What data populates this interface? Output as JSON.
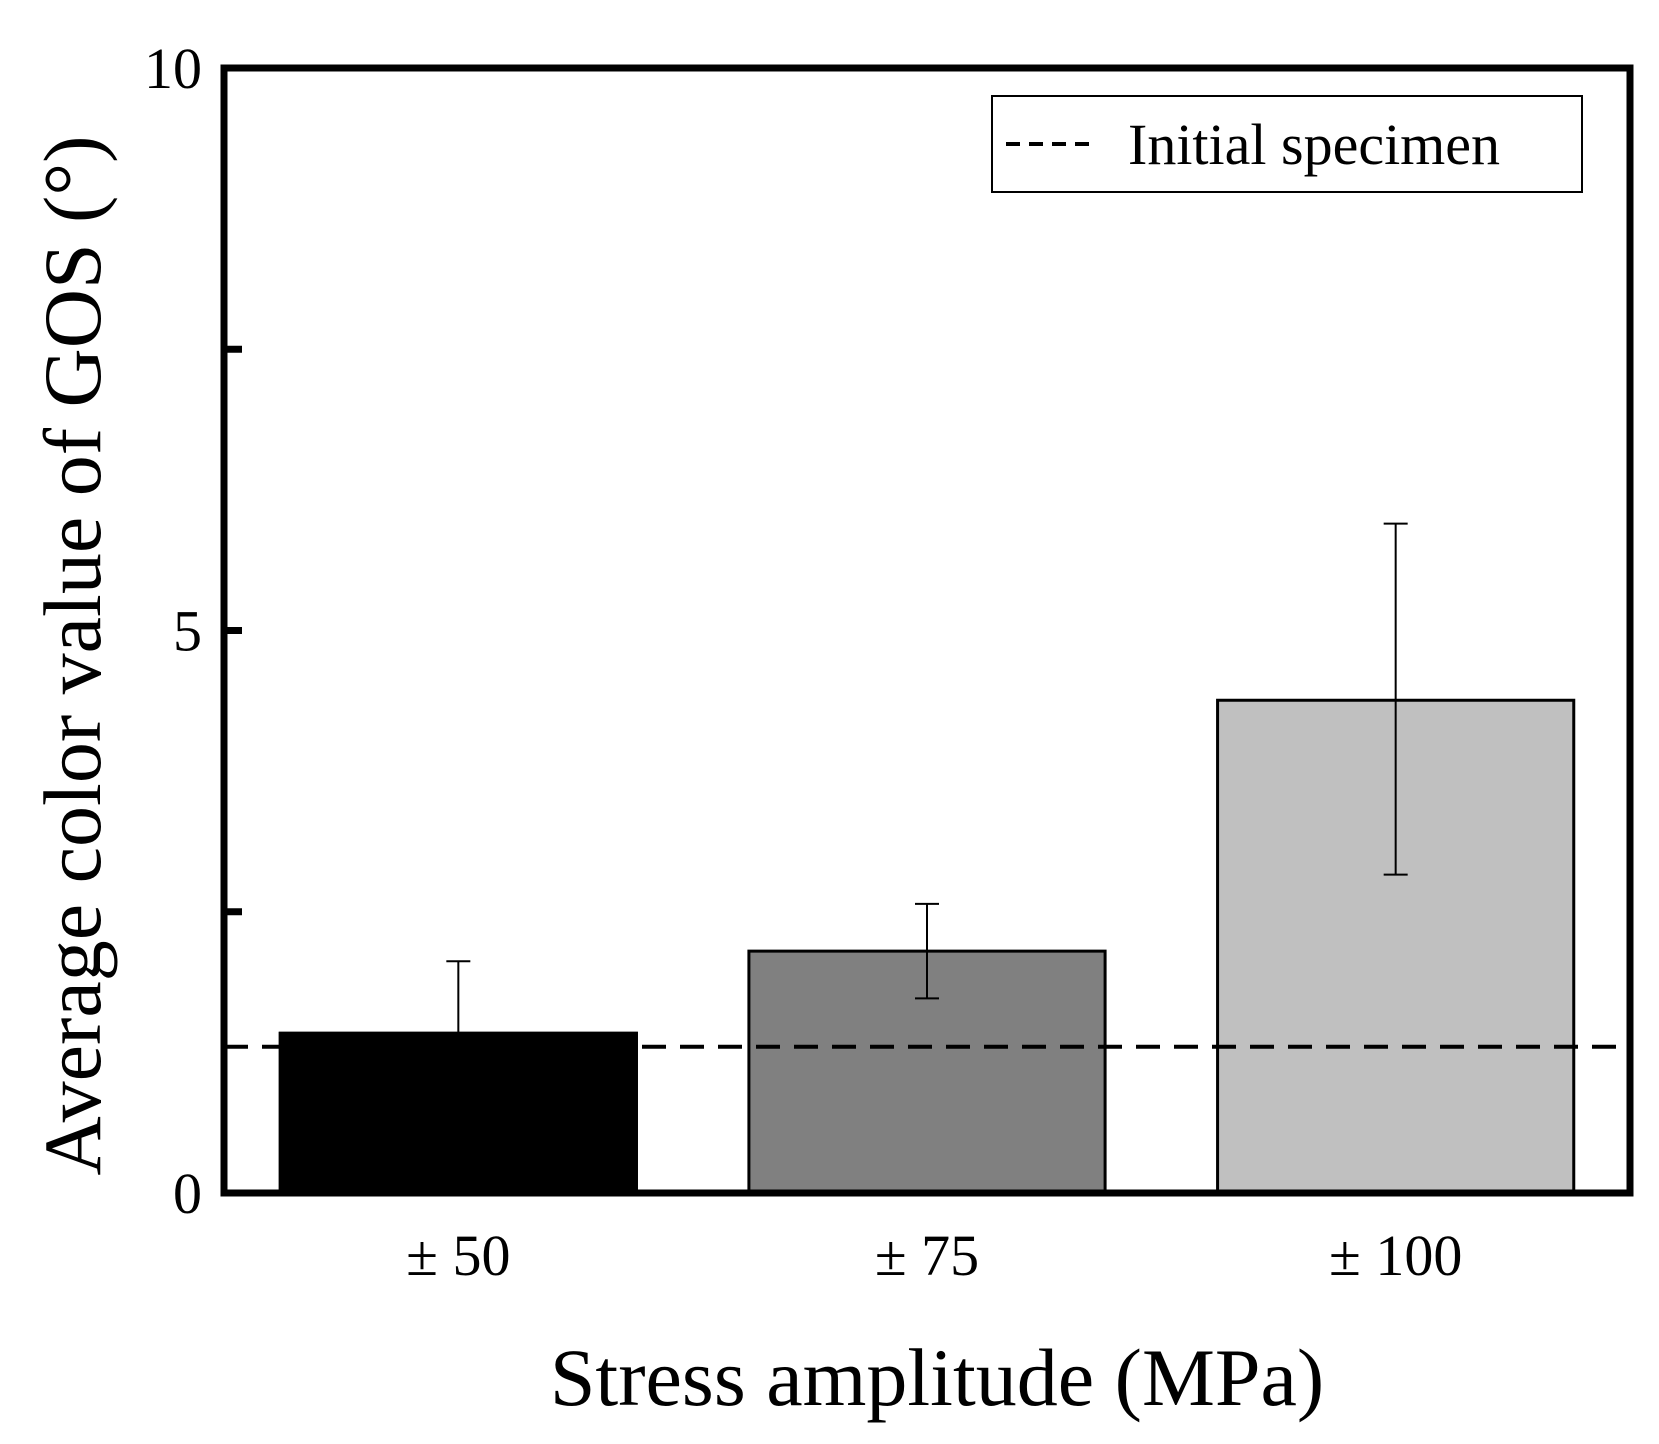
{
  "chart_data": {
    "type": "bar",
    "title": "",
    "xlabel": "Stress amplitude (MPa)",
    "ylabel": "Average color value of GOS (°)",
    "categories": [
      "± 50",
      "± 75",
      "± 100"
    ],
    "values": [
      1.42,
      2.15,
      4.38
    ],
    "error_bars": [
      {
        "low": 1.42,
        "high": 2.06
      },
      {
        "low": 1.73,
        "high": 2.57
      },
      {
        "low": 2.83,
        "high": 5.95
      }
    ],
    "bar_colors": [
      "#000000",
      "#808080",
      "#c0c0c0"
    ],
    "ylim": [
      0,
      10
    ],
    "yticks": [
      {
        "value": 0,
        "label": "0"
      },
      {
        "value": 2.5,
        "label": ""
      },
      {
        "value": 5,
        "label": "5"
      },
      {
        "value": 7.5,
        "label": ""
      },
      {
        "value": 10,
        "label": "10"
      }
    ],
    "reference_line": {
      "value": 1.3,
      "label": "Initial specimen",
      "style": "dashed"
    },
    "legend": {
      "position": "top-right",
      "entries": [
        "Initial specimen"
      ]
    },
    "grid": false
  }
}
